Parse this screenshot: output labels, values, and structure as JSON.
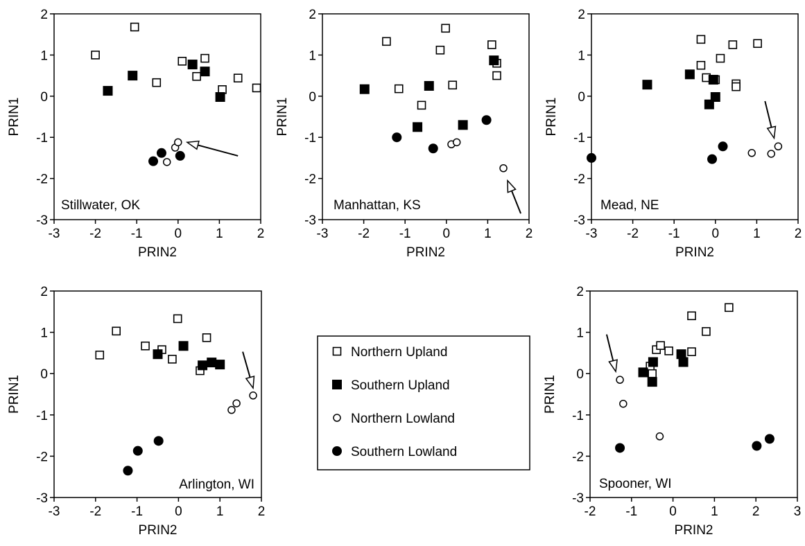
{
  "colors": {
    "ink": "#000000",
    "background": "#ffffff"
  },
  "legend": {
    "items": [
      {
        "label": "Northern Upland",
        "marker": "open-square"
      },
      {
        "label": "Southern Upland",
        "marker": "filled-square"
      },
      {
        "label": "Northern Lowland",
        "marker": "open-circle"
      },
      {
        "label": "Southern Lowland",
        "marker": "filled-circle"
      }
    ]
  },
  "chart_data": [
    {
      "type": "scatter",
      "site": "Stillwater, OK",
      "xlabel": "PRIN2",
      "ylabel": "PRIN1",
      "xlim": [
        -3,
        2
      ],
      "ylim": [
        -3,
        2
      ],
      "xticks": [
        "-3",
        "-2",
        "-1",
        "0",
        "1",
        "2"
      ],
      "yticks": [
        "-3",
        "-2",
        "-1",
        "0",
        "1",
        "2"
      ],
      "series": [
        {
          "name": "Northern Upland",
          "marker": "open-square",
          "points": [
            [
              -2.0,
              1.0
            ],
            [
              -1.05,
              1.68
            ],
            [
              -0.52,
              0.33
            ],
            [
              0.1,
              0.85
            ],
            [
              0.45,
              0.48
            ],
            [
              0.65,
              0.92
            ],
            [
              1.07,
              0.16
            ],
            [
              1.45,
              0.44
            ],
            [
              1.9,
              0.2
            ]
          ]
        },
        {
          "name": "Southern Upland",
          "marker": "filled-square",
          "points": [
            [
              -1.7,
              0.13
            ],
            [
              -1.1,
              0.5
            ],
            [
              0.35,
              0.77
            ],
            [
              0.65,
              0.6
            ],
            [
              1.02,
              -0.02
            ]
          ]
        },
        {
          "name": "Northern Lowland",
          "marker": "open-circle",
          "points": [
            [
              -0.27,
              -1.6
            ],
            [
              -0.07,
              -1.25
            ],
            [
              0.0,
              -1.12
            ]
          ]
        },
        {
          "name": "Southern Lowland",
          "marker": "filled-circle",
          "points": [
            [
              -0.6,
              -1.58
            ],
            [
              -0.4,
              -1.38
            ],
            [
              0.05,
              -1.45
            ]
          ]
        }
      ],
      "arrows": [
        {
          "from": [
            1.45,
            -1.45
          ],
          "to": [
            0.22,
            -1.12
          ]
        }
      ]
    },
    {
      "type": "scatter",
      "site": "Manhattan, KS",
      "xlabel": "PRIN2",
      "ylabel": "PRIN1",
      "xlim": [
        -3,
        2
      ],
      "ylim": [
        -3,
        2
      ],
      "xticks": [
        "-3",
        "-2",
        "-1",
        "0",
        "1",
        "2"
      ],
      "yticks": [
        "-3",
        "-2",
        "-1",
        "0",
        "1",
        "2"
      ],
      "series": [
        {
          "name": "Northern Upland",
          "marker": "open-square",
          "points": [
            [
              -1.45,
              1.33
            ],
            [
              -1.15,
              0.18
            ],
            [
              -0.6,
              -0.22
            ],
            [
              -0.15,
              1.12
            ],
            [
              -0.02,
              1.65
            ],
            [
              0.15,
              0.27
            ],
            [
              1.1,
              1.25
            ],
            [
              1.22,
              0.8
            ],
            [
              1.22,
              0.5
            ]
          ]
        },
        {
          "name": "Southern Upland",
          "marker": "filled-square",
          "points": [
            [
              -1.98,
              0.17
            ],
            [
              -0.42,
              0.25
            ],
            [
              -0.7,
              -0.75
            ],
            [
              0.4,
              -0.7
            ],
            [
              1.15,
              0.87
            ]
          ]
        },
        {
          "name": "Northern Lowland",
          "marker": "open-circle",
          "points": [
            [
              0.12,
              -1.17
            ],
            [
              0.25,
              -1.12
            ],
            [
              1.38,
              -1.75
            ]
          ]
        },
        {
          "name": "Southern Lowland",
          "marker": "filled-circle",
          "points": [
            [
              -1.2,
              -1.0
            ],
            [
              -0.32,
              -1.27
            ],
            [
              0.97,
              -0.58
            ]
          ]
        }
      ],
      "arrows": [
        {
          "from": [
            1.8,
            -2.85
          ],
          "to": [
            1.48,
            -2.05
          ]
        }
      ]
    },
    {
      "type": "scatter",
      "site": "Mead, NE",
      "xlabel": "PRIN2",
      "ylabel": "PRIN1",
      "xlim": [
        -3,
        2
      ],
      "ylim": [
        -3,
        2
      ],
      "xticks": [
        "-3",
        "-2",
        "-1",
        "0",
        "1",
        "2"
      ],
      "yticks": [
        "-3",
        "-2",
        "-1",
        "0",
        "1",
        "2"
      ],
      "series": [
        {
          "name": "Northern Upland",
          "marker": "open-square",
          "points": [
            [
              -0.35,
              1.38
            ],
            [
              -0.35,
              0.75
            ],
            [
              -0.22,
              0.45
            ],
            [
              0.0,
              0.4
            ],
            [
              0.12,
              0.92
            ],
            [
              0.42,
              1.25
            ],
            [
              0.5,
              0.3
            ],
            [
              0.5,
              0.23
            ],
            [
              1.02,
              1.28
            ]
          ]
        },
        {
          "name": "Southern Upland",
          "marker": "filled-square",
          "points": [
            [
              -1.65,
              0.28
            ],
            [
              -0.62,
              0.53
            ],
            [
              -0.05,
              0.4
            ],
            [
              -0.15,
              -0.2
            ],
            [
              0.0,
              -0.02
            ]
          ]
        },
        {
          "name": "Northern Lowland",
          "marker": "open-circle",
          "points": [
            [
              0.88,
              -1.38
            ],
            [
              1.35,
              -1.4
            ],
            [
              1.52,
              -1.22
            ]
          ]
        },
        {
          "name": "Southern Lowland",
          "marker": "filled-circle",
          "points": [
            [
              -3.0,
              -1.5
            ],
            [
              -0.08,
              -1.53
            ],
            [
              0.18,
              -1.22
            ]
          ]
        }
      ],
      "arrows": [
        {
          "from": [
            1.2,
            -0.12
          ],
          "to": [
            1.42,
            -1.02
          ]
        }
      ]
    },
    {
      "type": "scatter",
      "site": "Arlington, WI",
      "xlabel": "PRIN2",
      "ylabel": "PRIN1",
      "xlim": [
        -3,
        2
      ],
      "ylim": [
        -3,
        2
      ],
      "xticks": [
        "-3",
        "-2",
        "-1",
        "0",
        "1",
        "2"
      ],
      "yticks": [
        "-3",
        "-2",
        "-1",
        "0",
        "1",
        "2"
      ],
      "series": [
        {
          "name": "Northern Upland",
          "marker": "open-square",
          "points": [
            [
              -1.9,
              0.45
            ],
            [
              -1.5,
              1.03
            ],
            [
              -0.8,
              0.67
            ],
            [
              -0.4,
              0.58
            ],
            [
              -0.15,
              0.35
            ],
            [
              -0.02,
              1.33
            ],
            [
              0.68,
              0.87
            ],
            [
              0.52,
              0.07
            ]
          ]
        },
        {
          "name": "Southern Upland",
          "marker": "filled-square",
          "points": [
            [
              -0.5,
              0.47
            ],
            [
              0.12,
              0.67
            ],
            [
              0.58,
              0.2
            ],
            [
              0.8,
              0.27
            ],
            [
              1.0,
              0.22
            ]
          ]
        },
        {
          "name": "Northern Lowland",
          "marker": "open-circle",
          "points": [
            [
              1.28,
              -0.88
            ],
            [
              1.4,
              -0.72
            ],
            [
              1.8,
              -0.53
            ]
          ]
        },
        {
          "name": "Southern Lowland",
          "marker": "filled-circle",
          "points": [
            [
              -1.22,
              -2.35
            ],
            [
              -0.98,
              -1.87
            ],
            [
              -0.48,
              -1.63
            ]
          ]
        }
      ],
      "arrows": [
        {
          "from": [
            1.55,
            0.53
          ],
          "to": [
            1.8,
            -0.35
          ]
        }
      ]
    },
    {
      "type": "scatter",
      "site": "Spooner, WI",
      "xlabel": "PRIN2",
      "ylabel": "PRIN1",
      "xlim": [
        -2,
        3
      ],
      "ylim": [
        -3,
        2
      ],
      "xticks": [
        "-2",
        "-1",
        "0",
        "1",
        "2",
        "3"
      ],
      "yticks": [
        "-3",
        "-2",
        "-1",
        "0",
        "1",
        "2"
      ],
      "series": [
        {
          "name": "Northern Upland",
          "marker": "open-square",
          "points": [
            [
              -0.55,
              0.18
            ],
            [
              -0.5,
              0.0
            ],
            [
              -0.4,
              0.58
            ],
            [
              -0.3,
              0.68
            ],
            [
              -0.1,
              0.55
            ],
            [
              0.45,
              1.4
            ],
            [
              0.45,
              0.53
            ],
            [
              0.8,
              1.02
            ],
            [
              1.35,
              1.6
            ]
          ]
        },
        {
          "name": "Southern Upland",
          "marker": "filled-square",
          "points": [
            [
              -0.72,
              0.03
            ],
            [
              -0.48,
              0.28
            ],
            [
              -0.5,
              -0.2
            ],
            [
              0.2,
              0.47
            ],
            [
              0.25,
              0.28
            ]
          ]
        },
        {
          "name": "Northern Lowland",
          "marker": "open-circle",
          "points": [
            [
              -1.28,
              -0.15
            ],
            [
              -1.2,
              -0.73
            ],
            [
              -0.32,
              -1.52
            ]
          ]
        },
        {
          "name": "Southern Lowland",
          "marker": "filled-circle",
          "points": [
            [
              -1.28,
              -1.8
            ],
            [
              2.02,
              -1.75
            ],
            [
              2.33,
              -1.58
            ]
          ]
        }
      ],
      "arrows": [
        {
          "from": [
            -1.6,
            0.95
          ],
          "to": [
            -1.38,
            0.05
          ]
        }
      ]
    }
  ]
}
